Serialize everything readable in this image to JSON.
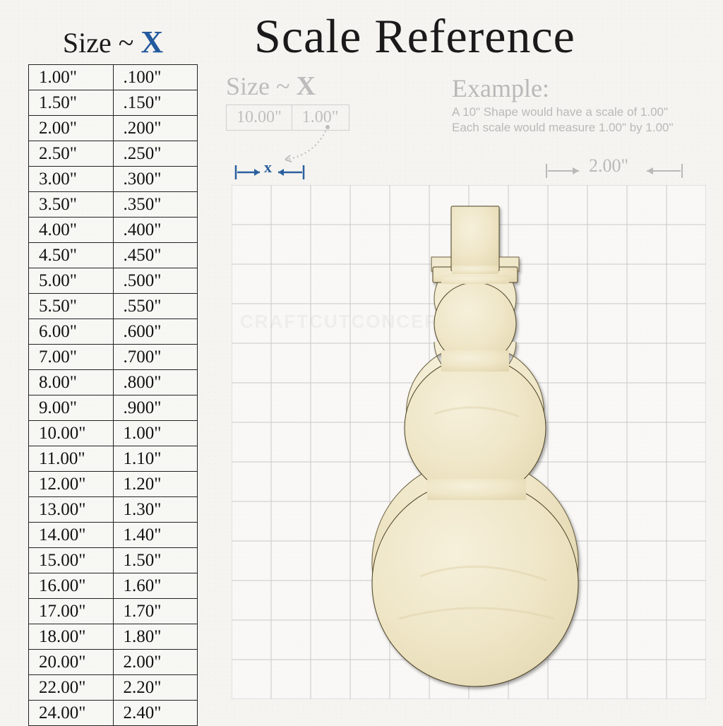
{
  "title": "Scale Reference",
  "table_header": {
    "prefix": "Size ~ ",
    "x": "X"
  },
  "table": {
    "columns": [
      "Size",
      "X"
    ],
    "rows": [
      [
        "1.00\"",
        ".100\""
      ],
      [
        "1.50\"",
        ".150\""
      ],
      [
        "2.00\"",
        ".200\""
      ],
      [
        "2.50\"",
        ".250\""
      ],
      [
        "3.00\"",
        ".300\""
      ],
      [
        "3.50\"",
        ".350\""
      ],
      [
        "4.00\"",
        ".400\""
      ],
      [
        "4.50\"",
        ".450\""
      ],
      [
        "5.00\"",
        ".500\""
      ],
      [
        "5.50\"",
        ".550\""
      ],
      [
        "6.00\"",
        ".600\""
      ],
      [
        "7.00\"",
        ".700\""
      ],
      [
        "8.00\"",
        ".800\""
      ],
      [
        "9.00\"",
        ".900\""
      ],
      [
        "10.00\"",
        "1.00\""
      ],
      [
        "11.00\"",
        "1.10\""
      ],
      [
        "12.00\"",
        "1.20\""
      ],
      [
        "13.00\"",
        "1.30\""
      ],
      [
        "14.00\"",
        "1.40\""
      ],
      [
        "15.00\"",
        "1.50\""
      ],
      [
        "16.00\"",
        "1.60\""
      ],
      [
        "17.00\"",
        "1.70\""
      ],
      [
        "18.00\"",
        "1.80\""
      ],
      [
        "20.00\"",
        "2.00\""
      ],
      [
        "22.00\"",
        "2.20\""
      ],
      [
        "24.00\"",
        "2.40\""
      ]
    ],
    "border_color": "#222222",
    "font_size_pt": 19,
    "text_color": "#111111"
  },
  "sub_header": {
    "prefix": "Size ~ ",
    "x": "X"
  },
  "mini_table": {
    "cells": [
      "10.00\"",
      "1.00\""
    ],
    "border_color": "#cfcfcf",
    "text_color": "#bfbfbf"
  },
  "x_marker": {
    "label": "x",
    "color": "#2a5f9e"
  },
  "example": {
    "heading": "Example:",
    "line1": "A 10\" Shape would have a scale of 1.00\"",
    "line2": "Each scale would measure 1.00\" by 1.00\"",
    "text_color": "#b9b9b9"
  },
  "dim2": {
    "label": "2.00\"",
    "color": "#b9b9b9"
  },
  "grid": {
    "cols": 12,
    "rows": 13,
    "line_color": "#c9c9c9",
    "bg_color": "rgba(255,255,255,0.4)"
  },
  "shape": {
    "name": "snowman",
    "fill": "#efe6c7",
    "highlight": "#f6f0db",
    "shadow": "#e3d7b0",
    "outline": "#6b5f3e"
  },
  "watermark": "CRAFTCUTCONCEPTS",
  "colors": {
    "background": "#f5f4f0",
    "title": "#1a1a1a",
    "accent_blue": "#245a9e",
    "muted": "#b9b9b9"
  }
}
